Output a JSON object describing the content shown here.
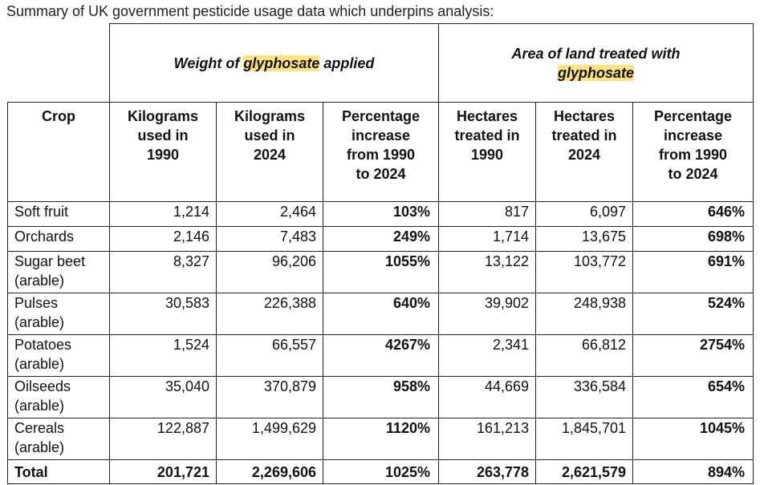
{
  "caption": "Summary of UK government pesticide usage data which underpins analysis:",
  "groups": {
    "weight_prefix": "Weight of ",
    "weight_highlight": "glyphosate",
    "weight_suffix": " applied",
    "area_line1": "Area of land treated with",
    "area_highlight": "glyphosate"
  },
  "colors": {
    "highlight": "#ffe083"
  },
  "headers": {
    "crop": "Crop",
    "kg1990": [
      "Kilograms",
      "used in",
      "1990"
    ],
    "kg2024": [
      "Kilograms",
      "used in",
      "2024"
    ],
    "kgpct": [
      "Percentage",
      "increase",
      "from 1990",
      "to 2024"
    ],
    "ha1990": [
      "Hectares",
      "treated in",
      "1990"
    ],
    "ha2024": [
      "Hectares",
      "treated in",
      "2024"
    ],
    "hapct": [
      "Percentage",
      "increase",
      "from 1990",
      "to 2024"
    ]
  },
  "rows": [
    {
      "crop": [
        "Soft fruit"
      ],
      "kg1990": "1,214",
      "kg2024": "2,464",
      "kgpct": "103%",
      "ha1990": "817",
      "ha2024": "6,097",
      "hapct": "646%"
    },
    {
      "crop": [
        "Orchards"
      ],
      "kg1990": "2,146",
      "kg2024": "7,483",
      "kgpct": "249%",
      "ha1990": "1,714",
      "ha2024": "13,675",
      "hapct": "698%"
    },
    {
      "crop": [
        "Sugar beet",
        "(arable)"
      ],
      "kg1990": "8,327",
      "kg2024": "96,206",
      "kgpct": "1055%",
      "ha1990": "13,122",
      "ha2024": "103,772",
      "hapct": "691%"
    },
    {
      "crop": [
        "Pulses",
        "(arable)"
      ],
      "kg1990": "30,583",
      "kg2024": "226,388",
      "kgpct": "640%",
      "ha1990": "39,902",
      "ha2024": "248,938",
      "hapct": "524%"
    },
    {
      "crop": [
        "Potatoes",
        "(arable)"
      ],
      "kg1990": "1,524",
      "kg2024": "66,557",
      "kgpct": "4267%",
      "ha1990": "2,341",
      "ha2024": "66,812",
      "hapct": "2754%"
    },
    {
      "crop": [
        "Oilseeds",
        "(arable)"
      ],
      "kg1990": "35,040",
      "kg2024": "370,879",
      "kgpct": "958%",
      "ha1990": "44,669",
      "ha2024": "336,584",
      "hapct": "654%"
    },
    {
      "crop": [
        "Cereals",
        "(arable)"
      ],
      "kg1990": "122,887",
      "kg2024": "1,499,629",
      "kgpct": "1120%",
      "ha1990": "161,213",
      "ha2024": "1,845,701",
      "hapct": "1045%"
    }
  ],
  "total": {
    "crop": "Total",
    "kg1990": "201,721",
    "kg2024": "2,269,606",
    "kgpct": "1025%",
    "ha1990": "263,778",
    "ha2024": "2,621,579",
    "hapct": "894%"
  }
}
